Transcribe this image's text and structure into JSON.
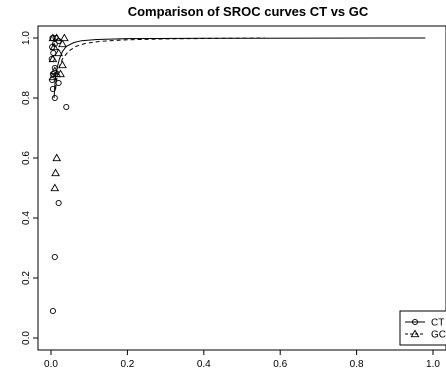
{
  "chart_data": {
    "type": "scatter",
    "title": "Comparison of SROC curves CT vs GC",
    "xlabel": "",
    "ylabel": "",
    "xlim": [
      0,
      1
    ],
    "ylim": [
      0,
      1
    ],
    "x_ticks": [
      "0.0",
      "0.2",
      "0.4",
      "0.6",
      "0.8",
      "1.0"
    ],
    "y_ticks": [
      "0.0",
      "0.2",
      "0.4",
      "0.6",
      "0.8",
      "1.0"
    ],
    "grid": false,
    "legend_position": "bottom-right",
    "series": [
      {
        "name": "CT",
        "marker": "circle",
        "line_style": "solid",
        "points": [
          {
            "x": 0.005,
            "y": 0.09
          },
          {
            "x": 0.01,
            "y": 0.27
          },
          {
            "x": 0.02,
            "y": 0.45
          },
          {
            "x": 0.04,
            "y": 0.77
          },
          {
            "x": 0.02,
            "y": 0.85
          },
          {
            "x": 0.01,
            "y": 0.8
          },
          {
            "x": 0.005,
            "y": 0.83
          },
          {
            "x": 0.003,
            "y": 0.86
          },
          {
            "x": 0.005,
            "y": 0.88
          },
          {
            "x": 0.01,
            "y": 0.9
          },
          {
            "x": 0.002,
            "y": 0.93
          },
          {
            "x": 0.006,
            "y": 0.95
          },
          {
            "x": 0.003,
            "y": 0.97
          },
          {
            "x": 0.01,
            "y": 0.98
          },
          {
            "x": 0.004,
            "y": 1.0
          },
          {
            "x": 0.012,
            "y": 1.0
          },
          {
            "x": 0.02,
            "y": 0.99
          }
        ],
        "curve": [
          {
            "x": 0.008,
            "y": 0.8
          },
          {
            "x": 0.011,
            "y": 0.86
          },
          {
            "x": 0.016,
            "y": 0.9
          },
          {
            "x": 0.022,
            "y": 0.93
          },
          {
            "x": 0.03,
            "y": 0.955
          },
          {
            "x": 0.04,
            "y": 0.972
          },
          {
            "x": 0.06,
            "y": 0.985
          },
          {
            "x": 0.08,
            "y": 0.991
          },
          {
            "x": 0.12,
            "y": 0.995
          },
          {
            "x": 0.2,
            "y": 0.998
          },
          {
            "x": 0.4,
            "y": 0.999
          },
          {
            "x": 0.98,
            "y": 1.0
          }
        ]
      },
      {
        "name": "GC",
        "marker": "triangle",
        "line_style": "dashed",
        "points": [
          {
            "x": 0.01,
            "y": 0.5
          },
          {
            "x": 0.012,
            "y": 0.55
          },
          {
            "x": 0.015,
            "y": 0.6
          },
          {
            "x": 0.005,
            "y": 0.87
          },
          {
            "x": 0.015,
            "y": 0.88
          },
          {
            "x": 0.025,
            "y": 0.88
          },
          {
            "x": 0.01,
            "y": 0.89
          },
          {
            "x": 0.03,
            "y": 0.91
          },
          {
            "x": 0.005,
            "y": 0.93
          },
          {
            "x": 0.02,
            "y": 0.95
          },
          {
            "x": 0.008,
            "y": 0.97
          },
          {
            "x": 0.03,
            "y": 0.98
          },
          {
            "x": 0.005,
            "y": 1.0
          },
          {
            "x": 0.015,
            "y": 1.0
          },
          {
            "x": 0.035,
            "y": 1.0
          }
        ],
        "curve": [
          {
            "x": 0.012,
            "y": 0.83
          },
          {
            "x": 0.016,
            "y": 0.87
          },
          {
            "x": 0.022,
            "y": 0.905
          },
          {
            "x": 0.03,
            "y": 0.93
          },
          {
            "x": 0.045,
            "y": 0.955
          },
          {
            "x": 0.065,
            "y": 0.972
          },
          {
            "x": 0.09,
            "y": 0.982
          },
          {
            "x": 0.13,
            "y": 0.989
          },
          {
            "x": 0.2,
            "y": 0.994
          },
          {
            "x": 0.3,
            "y": 0.997
          },
          {
            "x": 0.45,
            "y": 0.999
          },
          {
            "x": 0.56,
            "y": 1.0
          }
        ]
      }
    ]
  }
}
